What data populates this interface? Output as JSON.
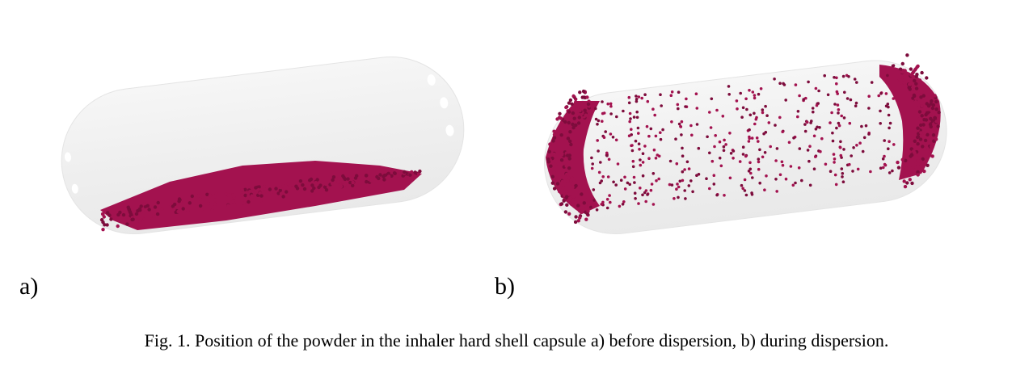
{
  "figure": {
    "panels": [
      {
        "id": "a",
        "label": "a)",
        "state": "before dispersion"
      },
      {
        "id": "b",
        "label": "b)",
        "state": "during dispersion"
      }
    ],
    "caption": "Fig. 1. Position of the powder in the inhaler hard shell capsule a) before dispersion, b) during dispersion."
  },
  "colors": {
    "capsule_fill": "#f1f1f1",
    "capsule_edge": "#e2e2e2",
    "powder": "#a3124f",
    "powder_dark": "#7d0c3c",
    "hole": "#ffffff"
  }
}
